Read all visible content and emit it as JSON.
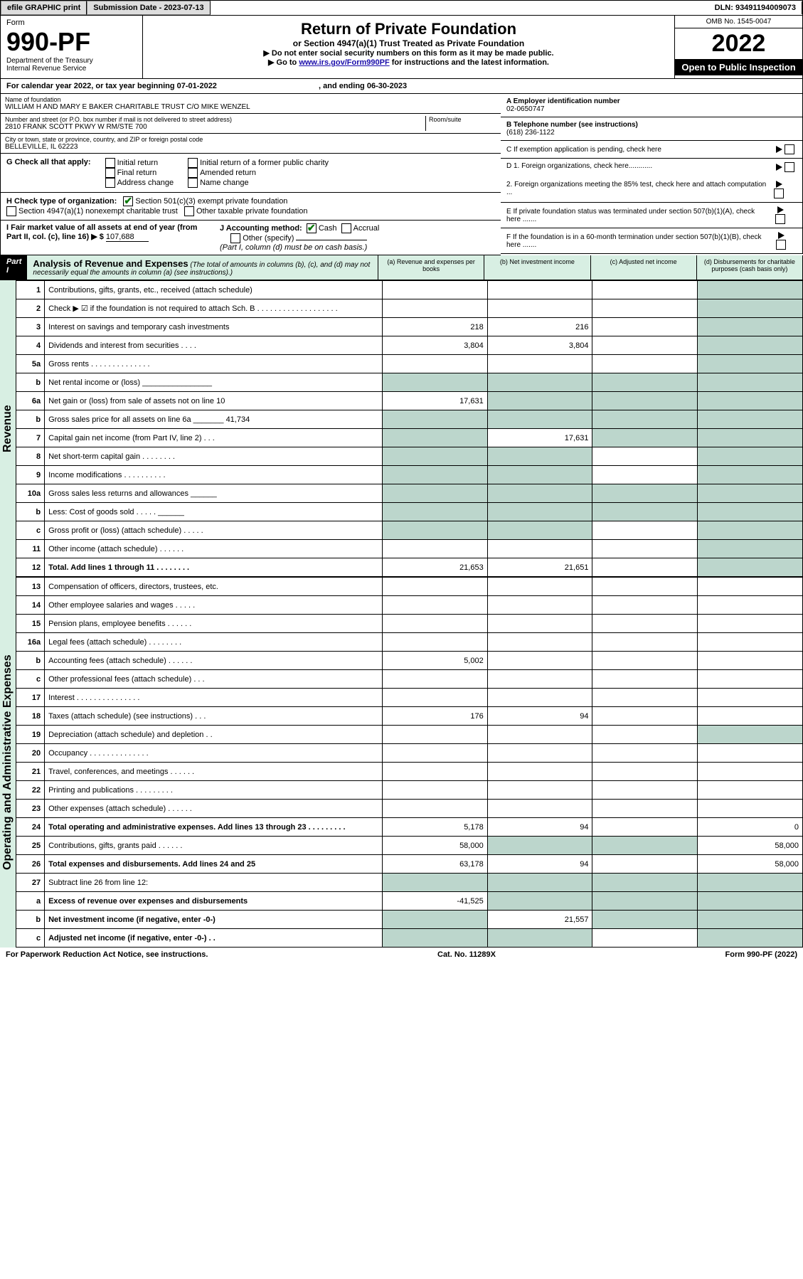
{
  "topbar": {
    "efile": "efile GRAPHIC print",
    "submission_label": "Submission Date - 2023-07-13",
    "dln": "DLN: 93491194009073"
  },
  "header": {
    "form_word": "Form",
    "form_num": "990-PF",
    "dept": "Department of the Treasury",
    "irs": "Internal Revenue Service",
    "title": "Return of Private Foundation",
    "subtitle": "or Section 4947(a)(1) Trust Treated as Private Foundation",
    "instr1": "▶ Do not enter social security numbers on this form as it may be made public.",
    "instr2_pre": "▶ Go to ",
    "instr2_link": "www.irs.gov/Form990PF",
    "instr2_post": " for instructions and the latest information.",
    "omb": "OMB No. 1545-0047",
    "year": "2022",
    "open": "Open to Public Inspection"
  },
  "calyear": {
    "pre": "For calendar year 2022, or tax year beginning ",
    "begin": "07-01-2022",
    "mid": " , and ending ",
    "end": "06-30-2023"
  },
  "entity": {
    "name_lbl": "Name of foundation",
    "name": "WILLIAM H AND MARY E BAKER CHARITABLE TRUST C/O MIKE WENZEL",
    "addr_lbl": "Number and street (or P.O. box number if mail is not delivered to street address)",
    "addr": "2810 FRANK SCOTT PKWY W RM/STE 700",
    "room_lbl": "Room/suite",
    "city_lbl": "City or town, state or province, country, and ZIP or foreign postal code",
    "city": "BELLEVILLE, IL  62223",
    "ein_lbl": "A Employer identification number",
    "ein": "02-0650747",
    "phone_lbl": "B Telephone number (see instructions)",
    "phone": "(618) 236-1122",
    "c_lbl": "C If exemption application is pending, check here"
  },
  "checks": {
    "g_lbl": "G Check all that apply:",
    "initial": "Initial return",
    "initial_former": "Initial return of a former public charity",
    "final": "Final return",
    "amended": "Amended return",
    "addr_change": "Address change",
    "name_change": "Name change",
    "d1": "D 1. Foreign organizations, check here............",
    "d2": "2. Foreign organizations meeting the 85% test, check here and attach computation ...",
    "e": "E  If private foundation status was terminated under section 507(b)(1)(A), check here .......",
    "f": "F  If the foundation is in a 60-month termination under section 507(b)(1)(B), check here ......."
  },
  "orgtype": {
    "h_lbl": "H Check type of organization:",
    "h1": "Section 501(c)(3) exempt private foundation",
    "h2": "Section 4947(a)(1) nonexempt charitable trust",
    "h3": "Other taxable private foundation"
  },
  "fmv": {
    "i_lbl": "I Fair market value of all assets at end of year (from Part II, col. (c), line 16) ▶ $",
    "i_val": "107,688",
    "j_lbl": "J Accounting method:",
    "cash": "Cash",
    "accrual": "Accrual",
    "other": "Other (specify)",
    "note": "(Part I, column (d) must be on cash basis.)"
  },
  "part1": {
    "label": "Part I",
    "title": "Analysis of Revenue and Expenses",
    "note": "(The total of amounts in columns (b), (c), and (d) may not necessarily equal the amounts in column (a) (see instructions).)",
    "col_a": "(a) Revenue and expenses per books",
    "col_b": "(b) Net investment income",
    "col_c": "(c) Adjusted net income",
    "col_d": "(d) Disbursements for charitable purposes (cash basis only)",
    "side_rev": "Revenue",
    "side_exp": "Operating and Administrative Expenses"
  },
  "rows": [
    {
      "n": "1",
      "d": "Contributions, gifts, grants, etc., received (attach schedule)",
      "a": "",
      "b": "",
      "dS": true
    },
    {
      "n": "2",
      "d": "Check ▶ ☑ if the foundation is not required to attach Sch. B  . . . . . . . . . . . . . . . . . . .",
      "dS": true
    },
    {
      "n": "3",
      "d": "Interest on savings and temporary cash investments",
      "a": "218",
      "b": "216",
      "dS": true
    },
    {
      "n": "4",
      "d": "Dividends and interest from securities  . . . .",
      "a": "3,804",
      "b": "3,804",
      "dS": true
    },
    {
      "n": "5a",
      "d": "Gross rents  . . . . . . . . . . . . . .",
      "dS": true
    },
    {
      "n": "b",
      "d": "Net rental income or (loss)  ________________",
      "aS": true,
      "bS": true,
      "cS": true,
      "dS": true
    },
    {
      "n": "6a",
      "d": "Net gain or (loss) from sale of assets not on line 10",
      "a": "17,631",
      "bS": true,
      "cS": true,
      "dS": true
    },
    {
      "n": "b",
      "d": "Gross sales price for all assets on line 6a _______ 41,734",
      "aS": true,
      "bS": true,
      "cS": true,
      "dS": true
    },
    {
      "n": "7",
      "d": "Capital gain net income (from Part IV, line 2)  . . .",
      "aS": true,
      "b": "17,631",
      "cS": true,
      "dS": true
    },
    {
      "n": "8",
      "d": "Net short-term capital gain  . . . . . . . .",
      "aS": true,
      "bS": true,
      "dS": true
    },
    {
      "n": "9",
      "d": "Income modifications  . . . . . . . . . .",
      "aS": true,
      "bS": true,
      "dS": true
    },
    {
      "n": "10a",
      "d": "Gross sales less returns and allowances  ______",
      "aS": true,
      "bS": true,
      "cS": true,
      "dS": true
    },
    {
      "n": "b",
      "d": "Less: Cost of goods sold  . . . . .  ______",
      "aS": true,
      "bS": true,
      "cS": true,
      "dS": true
    },
    {
      "n": "c",
      "d": "Gross profit or (loss) (attach schedule)  . . . . .",
      "aS": true,
      "bS": true,
      "dS": true
    },
    {
      "n": "11",
      "d": "Other income (attach schedule)  . . . . . .",
      "dS": true
    },
    {
      "n": "12",
      "d": "Total. Add lines 1 through 11  . . . . . . . .",
      "bold": true,
      "a": "21,653",
      "b": "21,651",
      "dS": true
    }
  ],
  "exp_rows": [
    {
      "n": "13",
      "d": "Compensation of officers, directors, trustees, etc."
    },
    {
      "n": "14",
      "d": "Other employee salaries and wages  . . . . ."
    },
    {
      "n": "15",
      "d": "Pension plans, employee benefits  . . . . . ."
    },
    {
      "n": "16a",
      "d": "Legal fees (attach schedule)  . . . . . . . ."
    },
    {
      "n": "b",
      "d": "Accounting fees (attach schedule)  . . . . . .",
      "a": "5,002"
    },
    {
      "n": "c",
      "d": "Other professional fees (attach schedule)  . . ."
    },
    {
      "n": "17",
      "d": "Interest  . . . . . . . . . . . . . . ."
    },
    {
      "n": "18",
      "d": "Taxes (attach schedule) (see instructions)  . . .",
      "a": "176",
      "b": "94"
    },
    {
      "n": "19",
      "d": "Depreciation (attach schedule) and depletion  . .",
      "dS": true
    },
    {
      "n": "20",
      "d": "Occupancy  . . . . . . . . . . . . . ."
    },
    {
      "n": "21",
      "d": "Travel, conferences, and meetings  . . . . . ."
    },
    {
      "n": "22",
      "d": "Printing and publications  . . . . . . . . ."
    },
    {
      "n": "23",
      "d": "Other expenses (attach schedule)  . . . . . ."
    },
    {
      "n": "24",
      "d": "Total operating and administrative expenses. Add lines 13 through 23  . . . . . . . . .",
      "bold": true,
      "a": "5,178",
      "b": "94",
      "dv": "0"
    },
    {
      "n": "25",
      "d": "Contributions, gifts, grants paid  . . . . . .",
      "a": "58,000",
      "bS": true,
      "cS": true,
      "dv": "58,000"
    },
    {
      "n": "26",
      "d": "Total expenses and disbursements. Add lines 24 and 25",
      "bold": true,
      "a": "63,178",
      "b": "94",
      "dv": "58,000"
    },
    {
      "n": "27",
      "d": "Subtract line 26 from line 12:",
      "aS": true,
      "bS": true,
      "cS": true,
      "dS": true
    },
    {
      "n": "a",
      "d": "Excess of revenue over expenses and disbursements",
      "bold": true,
      "a": "-41,525",
      "bS": true,
      "cS": true,
      "dS": true
    },
    {
      "n": "b",
      "d": "Net investment income (if negative, enter -0-)",
      "bold": true,
      "aS": true,
      "b": "21,557",
      "cS": true,
      "dS": true
    },
    {
      "n": "c",
      "d": "Adjusted net income (if negative, enter -0-)  . .",
      "bold": true,
      "aS": true,
      "bS": true,
      "dS": true
    }
  ],
  "footer": {
    "pra": "For Paperwork Reduction Act Notice, see instructions.",
    "cat": "Cat. No. 11289X",
    "form": "Form 990-PF (2022)"
  }
}
